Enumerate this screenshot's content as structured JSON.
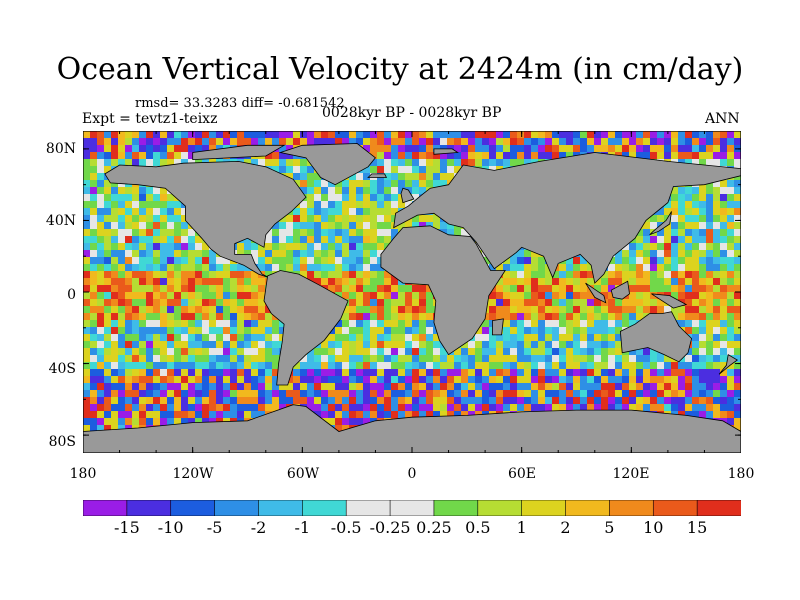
{
  "title": "Ocean Vertical Velocity at 2424m (in cm/day)",
  "stats": "rmsd= 33.3283 diff= -0.681542",
  "experiment": "Expt = tevtz1-teixz",
  "period": "0028kyr BP - 0028kyr BP",
  "season": "ANN",
  "lat_labels": [
    "80N",
    "40N",
    "0",
    "40S",
    "80S"
  ],
  "lon_labels": [
    "180",
    "120W",
    "60W",
    "0",
    "60E",
    "120E",
    "180"
  ],
  "colorbar": {
    "labels": [
      "-15",
      "-10",
      "-5",
      "-2",
      "-1",
      "-0.5",
      "-0.25",
      "0.25",
      "0.5",
      "1",
      "2",
      "5",
      "10",
      "15"
    ],
    "colors": [
      "#9a1de6",
      "#4b2ee0",
      "#1c5ddf",
      "#2e8fe6",
      "#3fbbe8",
      "#40d8d5",
      "#e6e6e6",
      "#71d84a",
      "#b6dd33",
      "#dcd31f",
      "#f1b91e",
      "#f08a1c",
      "#ea5a1b",
      "#e02e1c"
    ]
  },
  "land_color": "#999999"
}
